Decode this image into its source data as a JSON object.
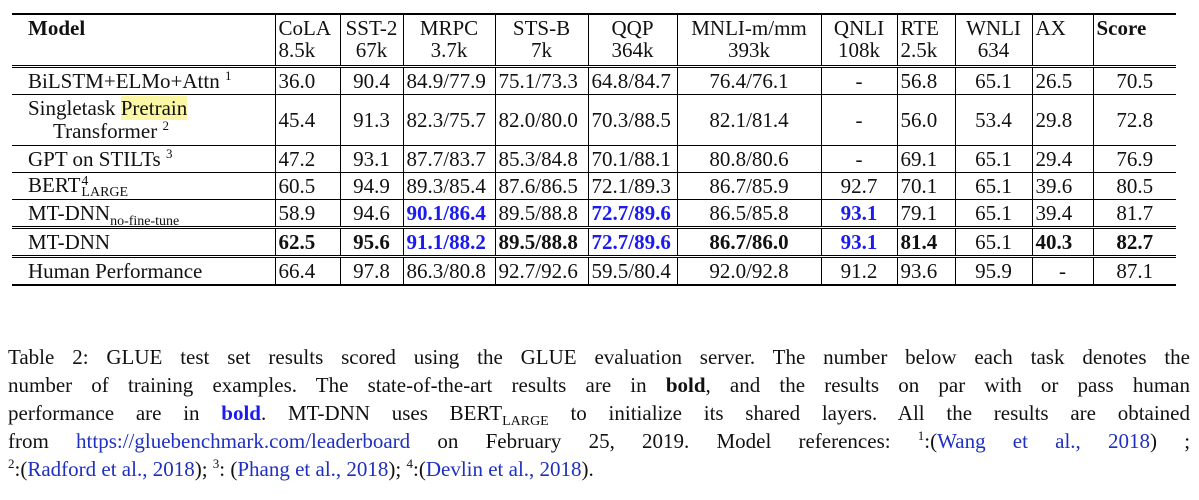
{
  "table": {
    "headers": [
      {
        "name": "Model",
        "size": ""
      },
      {
        "name": "CoLA",
        "size": "8.5k"
      },
      {
        "name": "SST-2",
        "size": "67k"
      },
      {
        "name": "MRPC",
        "size": "3.7k"
      },
      {
        "name": "STS-B",
        "size": "7k"
      },
      {
        "name": "QQP",
        "size": "364k"
      },
      {
        "name": "MNLI-m/mm",
        "size": "393k"
      },
      {
        "name": "QNLI",
        "size": "108k"
      },
      {
        "name": "RTE",
        "size": "2.5k"
      },
      {
        "name": "WNLI",
        "size": "634"
      },
      {
        "name": "AX",
        "size": ""
      },
      {
        "name": "Score",
        "size": ""
      }
    ],
    "rows": [
      {
        "model": "BiLSTM+ELMo+Attn",
        "ref": "1",
        "cells": [
          "36.0",
          "90.4",
          "84.9/77.9",
          "75.1/73.3",
          "64.8/84.7",
          "76.4/76.1",
          "-",
          "56.8",
          "65.1",
          "26.5",
          "70.5"
        ]
      },
      {
        "model_line1": "Singletask",
        "model_hl": "Pretrain",
        "model_line2": "Transformer",
        "ref": "2",
        "cells": [
          "45.4",
          "91.3",
          "82.3/75.7",
          "82.0/80.0",
          "70.3/88.5",
          "82.1/81.4",
          "-",
          "56.0",
          "53.4",
          "29.8",
          "72.8"
        ]
      },
      {
        "model": "GPT on STILTs",
        "ref": "3",
        "cells": [
          "47.2",
          "93.1",
          "87.7/83.7",
          "85.3/84.8",
          "70.1/88.1",
          "80.8/80.6",
          "-",
          "69.1",
          "65.1",
          "29.4",
          "76.9"
        ]
      },
      {
        "model": "BERT",
        "sup": "4",
        "sub": "LARGE",
        "cells": [
          "60.5",
          "94.9",
          "89.3/85.4",
          "87.6/86.5",
          "72.1/89.3",
          "86.7/85.9",
          "92.7",
          "70.1",
          "65.1",
          "39.6",
          "80.5"
        ]
      },
      {
        "model": "MT-DNN",
        "sub": "no-fine-tune",
        "cells": [
          "58.9",
          "94.6",
          "90.1/86.4",
          "89.5/88.8",
          "72.7/89.6",
          "86.5/85.8",
          "93.1",
          "79.1",
          "65.1",
          "39.4",
          "81.7"
        ]
      },
      {
        "model": "MT-DNN",
        "cells": [
          "62.5",
          "95.6",
          "91.1/88.2",
          "89.5/88.8",
          "72.7/89.6",
          "86.7/86.0",
          "93.1",
          "81.4",
          "65.1",
          "40.3",
          "82.7"
        ]
      },
      {
        "model": "Human Performance",
        "cells": [
          "66.4",
          "97.8",
          "86.3/80.8",
          "92.7/92.6",
          "59.5/80.4",
          "92.0/92.8",
          "91.2",
          "93.6",
          "95.9",
          "-",
          "87.1"
        ]
      }
    ]
  },
  "caption": {
    "p1": "Table 2: GLUE test set results scored using the GLUE evaluation server. The number below each task denotes the",
    "p2a": "number of training examples. The state-of-the-art results are in",
    "p2b": "bold",
    "p2c": ", and the results on par with or pass human",
    "p3a": "performance are in",
    "p3b": "bold",
    "p3c": ". MT-DNN uses BERT",
    "p3sub": "LARGE",
    "p3d": "to initialize its shared layers. All the results are obtained",
    "p4a": "from",
    "p4link": "https://gluebenchmark.com/leaderboard",
    "p4b": "on February 25, 2019. Model references:",
    "ref1": "1",
    "p4c": ":(",
    "cite1": "Wang et al., 2018",
    "p4d": ") ;",
    "ref2": "2",
    "p5a": ":(",
    "cite2": "Radford et al., 2018",
    "p5b": ");",
    "ref3": "3",
    "p5c": ": (",
    "cite3": "Phang et al., 2018",
    "p5d": ");",
    "ref4": "4",
    "p5e": ":(",
    "cite4": "Devlin et al., 2018",
    "p5f": ")."
  }
}
